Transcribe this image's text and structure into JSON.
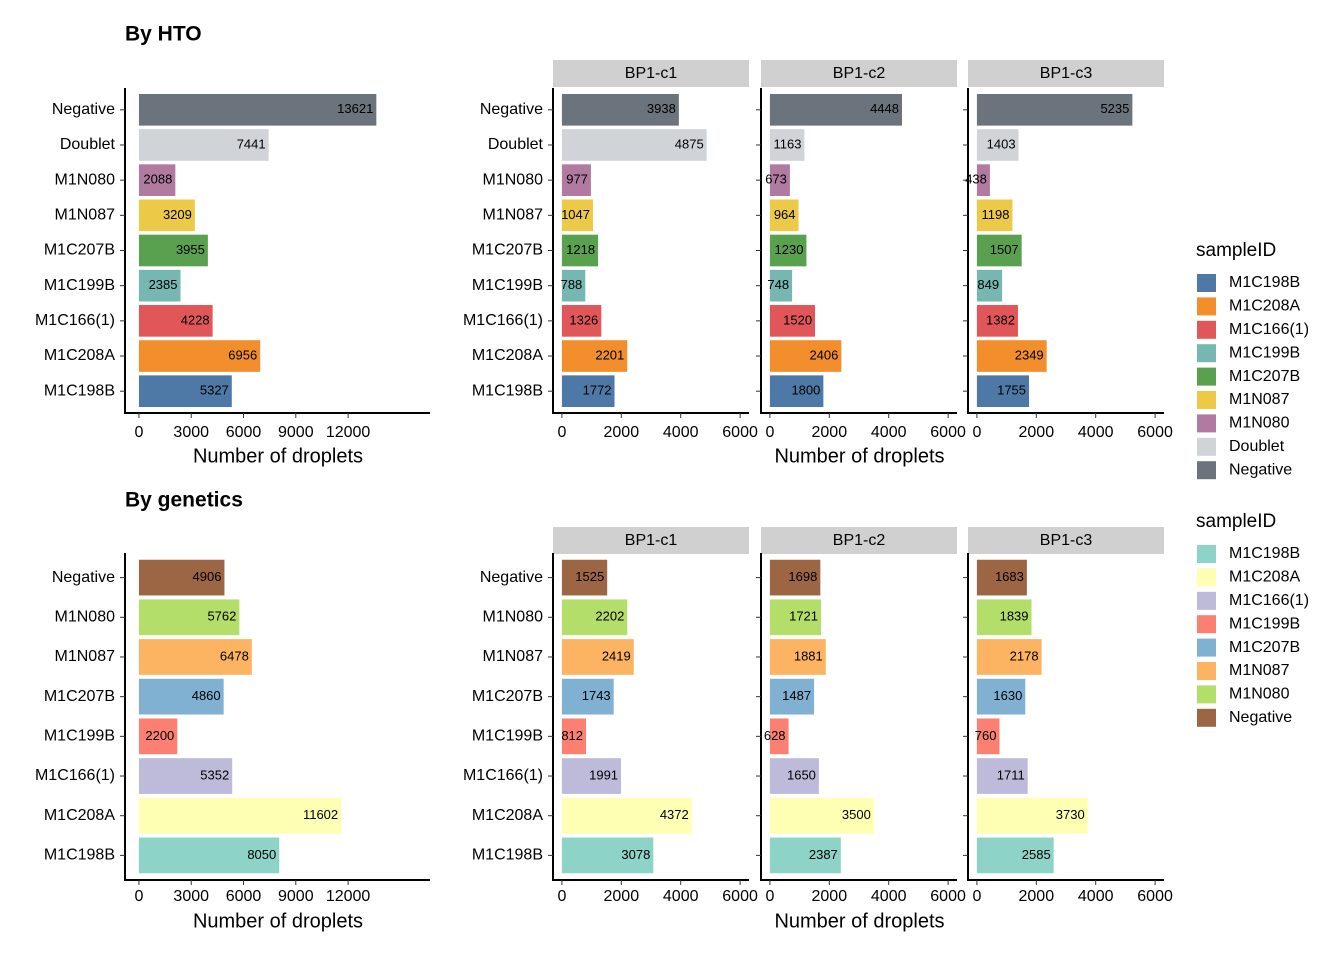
{
  "chart_data": [
    {
      "type": "bar",
      "orientation": "horizontal",
      "title": "By HTO",
      "categories": [
        "Negative",
        "Doublet",
        "M1N080",
        "M1N087",
        "M1C207B",
        "M1C199B",
        "M1C166(1)",
        "M1C208A",
        "M1C198B"
      ],
      "values": [
        13621,
        7441,
        2088,
        3209,
        3955,
        2385,
        4228,
        6956,
        5327
      ],
      "xlim": [
        -800,
        16700
      ],
      "xticks": [
        0,
        3000,
        6000,
        9000,
        12000
      ],
      "xlabel": "Number of droplets"
    },
    {
      "type": "bar",
      "orientation": "horizontal",
      "categories": [
        "Negative",
        "Doublet",
        "M1N080",
        "M1N087",
        "M1C207B",
        "M1C199B",
        "M1C166(1)",
        "M1C208A",
        "M1C198B"
      ],
      "facets": [
        {
          "label": "BP1-c1",
          "values": [
            3938,
            4875,
            977,
            1047,
            1218,
            788,
            1326,
            2201,
            1772
          ]
        },
        {
          "label": "BP1-c2",
          "values": [
            4448,
            1163,
            673,
            964,
            1230,
            748,
            1520,
            2406,
            1800
          ]
        },
        {
          "label": "BP1-c3",
          "values": [
            5235,
            1403,
            438,
            1198,
            1507,
            849,
            1382,
            2349,
            1755
          ]
        }
      ],
      "xlim": [
        -300,
        6300
      ],
      "xticks": [
        0,
        2000,
        4000,
        6000
      ],
      "xlabel": "Number of droplets",
      "legend": {
        "title": "sampleID",
        "entries": [
          {
            "name": "M1C198B",
            "color": "#4e79a7"
          },
          {
            "name": "M1C208A",
            "color": "#f28e2b"
          },
          {
            "name": "M1C166(1)",
            "color": "#e15759"
          },
          {
            "name": "M1C199B",
            "color": "#76b7b2"
          },
          {
            "name": "M1C207B",
            "color": "#59a14f"
          },
          {
            "name": "M1N087",
            "color": "#edc948"
          },
          {
            "name": "M1N080",
            "color": "#b07aa1"
          },
          {
            "name": "Doublet",
            "color": "#d0d4d9"
          },
          {
            "name": "Negative",
            "color": "#6b737c"
          }
        ]
      }
    },
    {
      "type": "bar",
      "orientation": "horizontal",
      "title": "By genetics",
      "categories": [
        "Negative",
        "M1N080",
        "M1N087",
        "M1C207B",
        "M1C199B",
        "M1C166(1)",
        "M1C208A",
        "M1C198B"
      ],
      "values": [
        4906,
        5762,
        6478,
        4860,
        2200,
        5352,
        11602,
        8050
      ],
      "xlim": [
        -800,
        16700
      ],
      "xticks": [
        0,
        3000,
        6000,
        9000,
        12000
      ],
      "xlabel": "Number of droplets"
    },
    {
      "type": "bar",
      "orientation": "horizontal",
      "categories": [
        "Negative",
        "M1N080",
        "M1N087",
        "M1C207B",
        "M1C199B",
        "M1C166(1)",
        "M1C208A",
        "M1C198B"
      ],
      "facets": [
        {
          "label": "BP1-c1",
          "values": [
            1525,
            2202,
            2419,
            1743,
            812,
            1991,
            4372,
            3078
          ]
        },
        {
          "label": "BP1-c2",
          "values": [
            1698,
            1721,
            1881,
            1487,
            628,
            1650,
            3500,
            2387
          ]
        },
        {
          "label": "BP1-c3",
          "values": [
            1683,
            1839,
            2178,
            1630,
            760,
            1711,
            3730,
            2585
          ]
        }
      ],
      "xlim": [
        -300,
        6300
      ],
      "xticks": [
        0,
        2000,
        4000,
        6000
      ],
      "xlabel": "Number of droplets",
      "legend": {
        "title": "sampleID",
        "entries": [
          {
            "name": "M1C198B",
            "color": "#8dd3c7"
          },
          {
            "name": "M1C208A",
            "color": "#ffffb3"
          },
          {
            "name": "M1C166(1)",
            "color": "#bebada"
          },
          {
            "name": "M1C199B",
            "color": "#fb8072"
          },
          {
            "name": "M1C207B",
            "color": "#80b1d3"
          },
          {
            "name": "M1N087",
            "color": "#fdb462"
          },
          {
            "name": "M1N080",
            "color": "#b3de69"
          },
          {
            "name": "Negative",
            "color": "#9c6644"
          }
        ]
      }
    }
  ]
}
